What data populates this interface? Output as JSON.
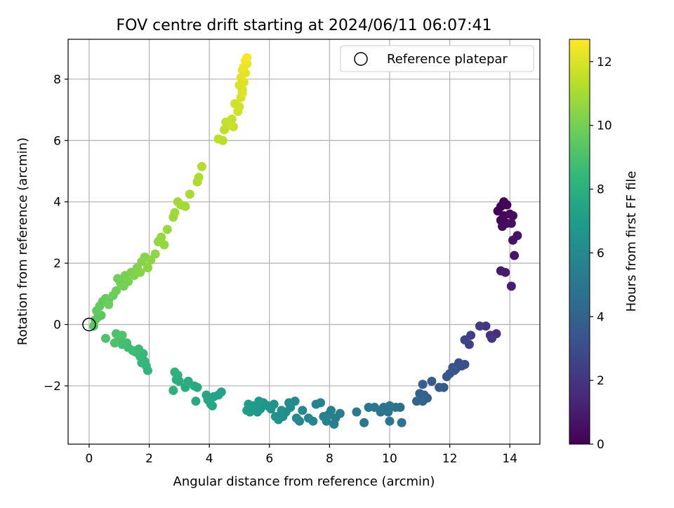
{
  "chart_data": {
    "type": "scatter",
    "title": "FOV centre drift starting at 2024/06/11 06:07:41",
    "xlabel": "Angular distance from reference (arcmin)",
    "ylabel": "Rotation from reference (arcmin)",
    "xlim": [
      -0.7,
      15.0
    ],
    "ylim": [
      -3.9,
      9.3
    ],
    "xticks": [
      0,
      2,
      4,
      6,
      8,
      10,
      12,
      14
    ],
    "yticks": [
      -2,
      0,
      2,
      4,
      6,
      8
    ],
    "xtick_labels": [
      "0",
      "2",
      "4",
      "6",
      "8",
      "10",
      "12",
      "14"
    ],
    "ytick_labels": [
      "−2",
      "0",
      "2",
      "4",
      "6",
      "8"
    ],
    "grid": true,
    "legend": {
      "position": "top-right",
      "entries": [
        {
          "label": "Reference platepar",
          "marker": "open-circle",
          "x": 0,
          "y": 0
        }
      ]
    },
    "colorbar": {
      "label": "Hours from first FF file",
      "colormap": "viridis",
      "range": [
        0,
        12.7
      ],
      "ticks": [
        0,
        2,
        4,
        6,
        8,
        10,
        12
      ],
      "tick_labels": [
        "0",
        "2",
        "4",
        "6",
        "8",
        "10",
        "12"
      ]
    },
    "colormap_stops": [
      "#440154",
      "#482878",
      "#3e4989",
      "#31688e",
      "#26828e",
      "#1f9e89",
      "#35b779",
      "#6ece58",
      "#b5de2b",
      "#fde725"
    ],
    "series": [
      {
        "values_columns": [
          "x",
          "y",
          "hours"
        ],
        "points": [
          [
            13.8,
            4.0,
            0.0
          ],
          [
            13.7,
            3.85,
            0.05
          ],
          [
            13.9,
            3.9,
            0.1
          ],
          [
            13.6,
            3.7,
            0.15
          ],
          [
            13.8,
            3.55,
            0.2
          ],
          [
            14.0,
            3.6,
            0.25
          ],
          [
            13.7,
            3.4,
            0.3
          ],
          [
            13.9,
            3.3,
            0.35
          ],
          [
            14.1,
            3.55,
            0.4
          ],
          [
            13.75,
            3.2,
            0.45
          ],
          [
            14.05,
            3.3,
            0.5
          ],
          [
            14.1,
            2.75,
            0.6
          ],
          [
            14.25,
            2.9,
            0.7
          ],
          [
            14.15,
            2.25,
            0.8
          ],
          [
            13.7,
            1.75,
            0.9
          ],
          [
            13.85,
            1.7,
            1.0
          ],
          [
            14.05,
            1.25,
            1.1
          ],
          [
            13.55,
            -0.3,
            1.8
          ],
          [
            13.35,
            -0.35,
            1.9
          ],
          [
            13.4,
            -0.45,
            2.0
          ],
          [
            13.2,
            -0.05,
            2.1
          ],
          [
            13.0,
            -0.05,
            2.2
          ],
          [
            12.7,
            -0.35,
            2.4
          ],
          [
            12.65,
            -0.65,
            2.5
          ],
          [
            12.5,
            -0.5,
            2.6
          ],
          [
            12.5,
            -1.3,
            3.0
          ],
          [
            12.4,
            -1.35,
            3.1
          ],
          [
            12.3,
            -1.25,
            3.15
          ],
          [
            12.2,
            -1.45,
            3.2
          ],
          [
            12.1,
            -1.4,
            3.25
          ],
          [
            12.0,
            -1.6,
            3.3
          ],
          [
            11.9,
            -1.7,
            3.4
          ],
          [
            12.15,
            -1.5,
            3.45
          ],
          [
            11.8,
            -2.05,
            3.6
          ],
          [
            11.65,
            -2.05,
            3.7
          ],
          [
            11.4,
            -1.85,
            3.8
          ],
          [
            11.1,
            -1.95,
            3.85
          ],
          [
            11.0,
            -2.25,
            3.9
          ],
          [
            11.15,
            -2.3,
            3.95
          ],
          [
            11.25,
            -2.4,
            4.0
          ],
          [
            11.1,
            -2.5,
            4.05
          ],
          [
            10.9,
            -2.5,
            4.1
          ],
          [
            10.35,
            -2.7,
            4.6
          ],
          [
            10.2,
            -2.7,
            4.7
          ],
          [
            10.4,
            -3.2,
            4.75
          ],
          [
            10.0,
            -2.65,
            4.8
          ],
          [
            9.8,
            -2.7,
            4.85
          ],
          [
            9.7,
            -2.85,
            4.9
          ],
          [
            9.95,
            -2.85,
            4.95
          ],
          [
            10.0,
            -3.15,
            5.0
          ],
          [
            9.5,
            -2.7,
            5.05
          ],
          [
            9.3,
            -2.7,
            5.1
          ],
          [
            9.15,
            -3.2,
            5.15
          ],
          [
            8.9,
            -2.85,
            5.2
          ],
          [
            8.35,
            -2.9,
            5.4
          ],
          [
            8.2,
            -3.05,
            5.45
          ],
          [
            8.15,
            -3.25,
            5.5
          ],
          [
            8.05,
            -2.8,
            5.55
          ],
          [
            7.95,
            -2.95,
            5.6
          ],
          [
            7.9,
            -3.15,
            5.65
          ],
          [
            7.8,
            -3.0,
            5.7
          ],
          [
            7.7,
            -2.55,
            5.75
          ],
          [
            7.55,
            -2.6,
            5.8
          ],
          [
            7.45,
            -3.15,
            5.85
          ],
          [
            7.3,
            -3.05,
            5.9
          ],
          [
            7.1,
            -2.8,
            5.95
          ],
          [
            7.0,
            -3.15,
            6.0
          ],
          [
            6.9,
            -3.05,
            6.05
          ],
          [
            6.85,
            -2.5,
            6.1
          ],
          [
            6.7,
            -2.7,
            6.15
          ],
          [
            6.65,
            -2.55,
            6.2
          ],
          [
            6.55,
            -2.85,
            6.25
          ],
          [
            6.45,
            -3.0,
            6.3
          ],
          [
            6.4,
            -2.8,
            6.35
          ],
          [
            6.3,
            -3.1,
            6.4
          ],
          [
            6.2,
            -3.0,
            6.45
          ],
          [
            6.15,
            -2.6,
            6.5
          ],
          [
            6.05,
            -2.75,
            6.55
          ],
          [
            5.95,
            -2.65,
            6.6
          ],
          [
            5.8,
            -2.55,
            6.65
          ],
          [
            5.7,
            -2.75,
            6.7
          ],
          [
            5.6,
            -2.85,
            6.75
          ],
          [
            5.65,
            -2.5,
            6.8
          ],
          [
            5.45,
            -2.65,
            6.85
          ],
          [
            5.35,
            -2.85,
            6.9
          ],
          [
            5.25,
            -2.8,
            6.95
          ],
          [
            5.3,
            -2.6,
            7.0
          ],
          [
            4.4,
            -2.2,
            7.3
          ],
          [
            4.3,
            -2.3,
            7.35
          ],
          [
            4.15,
            -2.35,
            7.4
          ],
          [
            4.05,
            -2.6,
            7.45
          ],
          [
            3.95,
            -2.45,
            7.5
          ],
          [
            3.9,
            -2.3,
            7.55
          ],
          [
            4.1,
            -2.65,
            7.6
          ],
          [
            3.55,
            -2.5,
            7.65
          ],
          [
            3.6,
            -2.05,
            7.7
          ],
          [
            3.5,
            -2.0,
            7.75
          ],
          [
            3.3,
            -1.85,
            7.8
          ],
          [
            3.2,
            -2.05,
            7.85
          ],
          [
            3.0,
            -1.85,
            7.9
          ],
          [
            2.9,
            -1.8,
            7.95
          ],
          [
            2.95,
            -1.65,
            8.0
          ],
          [
            2.8,
            -2.15,
            8.05
          ],
          [
            2.85,
            -1.55,
            8.1
          ],
          [
            1.95,
            -1.5,
            8.3
          ],
          [
            1.9,
            -1.35,
            8.35
          ],
          [
            1.85,
            -1.2,
            8.4
          ],
          [
            1.75,
            -1.25,
            8.45
          ],
          [
            1.7,
            -1.05,
            8.5
          ],
          [
            1.8,
            -0.95,
            8.55
          ],
          [
            1.65,
            -0.8,
            8.6
          ],
          [
            1.55,
            -0.9,
            8.65
          ],
          [
            1.45,
            -0.85,
            8.7
          ],
          [
            1.3,
            -0.75,
            8.75
          ],
          [
            1.25,
            -0.6,
            8.8
          ],
          [
            1.1,
            -0.65,
            8.85
          ],
          [
            1.05,
            -0.5,
            8.9
          ],
          [
            1.0,
            -0.4,
            8.95
          ],
          [
            0.9,
            -0.3,
            9.0
          ],
          [
            1.1,
            -0.35,
            9.05
          ],
          [
            0.85,
            -0.6,
            9.1
          ],
          [
            0.55,
            -0.45,
            9.15
          ],
          [
            0.15,
            -0.05,
            9.3
          ],
          [
            0.2,
            0.15,
            9.35
          ],
          [
            0.3,
            0.25,
            9.4
          ],
          [
            0.4,
            0.3,
            9.45
          ],
          [
            0.25,
            0.45,
            9.5
          ],
          [
            0.35,
            0.6,
            9.55
          ],
          [
            0.45,
            0.75,
            9.6
          ],
          [
            0.55,
            0.85,
            9.65
          ],
          [
            0.65,
            0.8,
            9.7
          ],
          [
            0.8,
            0.95,
            9.75
          ],
          [
            0.65,
            0.65,
            9.8
          ],
          [
            0.9,
            1.1,
            9.85
          ],
          [
            0.95,
            1.5,
            9.9
          ],
          [
            1.05,
            1.35,
            9.95
          ],
          [
            1.15,
            1.25,
            10.0
          ],
          [
            1.2,
            1.6,
            10.05
          ],
          [
            1.3,
            1.4,
            10.1
          ],
          [
            1.4,
            1.7,
            10.15
          ],
          [
            1.5,
            1.6,
            10.2
          ],
          [
            1.6,
            1.85,
            10.25
          ],
          [
            1.7,
            1.7,
            10.3
          ],
          [
            1.75,
            2.05,
            10.35
          ],
          [
            1.85,
            2.2,
            10.4
          ],
          [
            1.95,
            1.85,
            10.45
          ],
          [
            2.05,
            2.1,
            10.5
          ],
          [
            2.2,
            2.3,
            10.55
          ],
          [
            2.3,
            2.7,
            10.6
          ],
          [
            2.4,
            2.85,
            10.65
          ],
          [
            2.5,
            2.6,
            10.7
          ],
          [
            2.6,
            3.1,
            10.75
          ],
          [
            2.8,
            3.5,
            10.8
          ],
          [
            2.85,
            3.65,
            10.85
          ],
          [
            2.95,
            4.0,
            10.9
          ],
          [
            3.05,
            3.9,
            10.95
          ],
          [
            3.2,
            3.85,
            11.0
          ],
          [
            3.35,
            4.25,
            11.05
          ],
          [
            3.6,
            4.65,
            11.1
          ],
          [
            3.65,
            4.8,
            11.15
          ],
          [
            3.75,
            5.15,
            11.2
          ],
          [
            4.3,
            6.05,
            11.4
          ],
          [
            4.45,
            6.0,
            11.45
          ],
          [
            4.5,
            6.35,
            11.5
          ],
          [
            4.55,
            6.6,
            11.55
          ],
          [
            4.7,
            6.5,
            11.6
          ],
          [
            4.75,
            6.7,
            11.65
          ],
          [
            4.8,
            6.45,
            11.7
          ],
          [
            4.85,
            7.2,
            11.75
          ],
          [
            4.95,
            6.95,
            11.8
          ],
          [
            5.0,
            7.1,
            11.85
          ],
          [
            5.05,
            7.4,
            11.9
          ],
          [
            5.1,
            7.65,
            11.95
          ],
          [
            5.0,
            7.8,
            12.0
          ],
          [
            5.1,
            7.55,
            12.05
          ],
          [
            5.15,
            7.9,
            12.1
          ],
          [
            5.05,
            8.05,
            12.15
          ],
          [
            5.2,
            8.2,
            12.2
          ],
          [
            5.1,
            8.3,
            12.25
          ],
          [
            5.25,
            8.5,
            12.3
          ],
          [
            5.15,
            8.4,
            12.35
          ],
          [
            5.2,
            8.6,
            12.45
          ],
          [
            5.25,
            8.7,
            12.6
          ]
        ]
      }
    ]
  }
}
